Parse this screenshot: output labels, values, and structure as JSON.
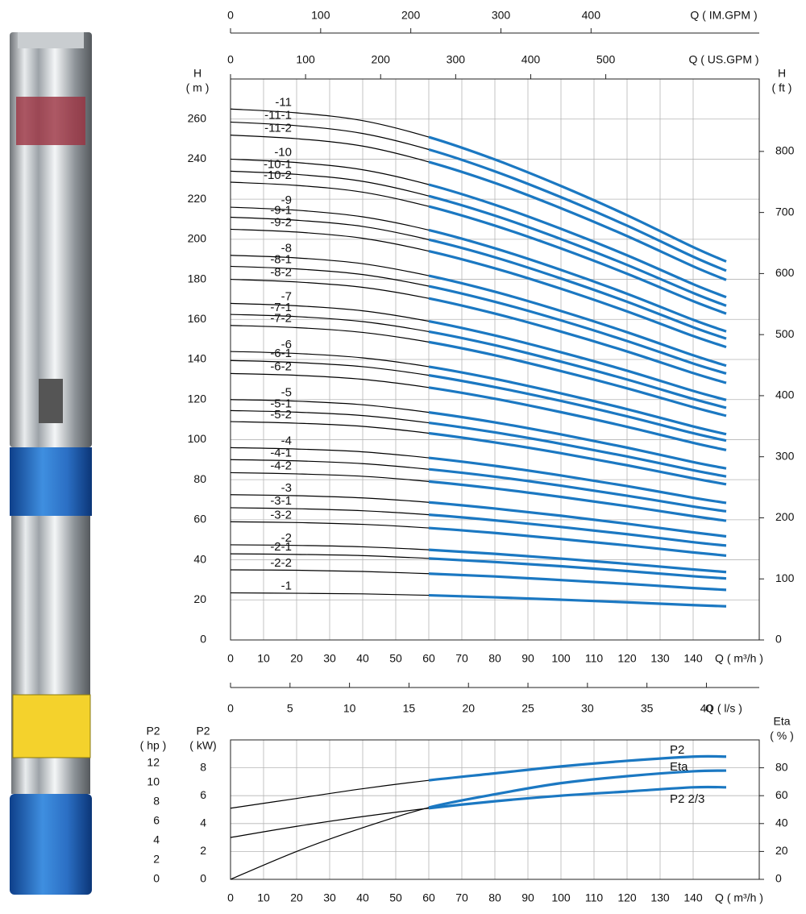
{
  "chart_data": [
    {
      "type": "line",
      "x": [
        0,
        20,
        40,
        60,
        80,
        100,
        120,
        140,
        150
      ],
      "xlim": [
        0,
        160
      ],
      "xticks": [
        0,
        10,
        20,
        30,
        40,
        50,
        60,
        70,
        80,
        90,
        100,
        110,
        120,
        130,
        140
      ],
      "x_label": "Q ( m³/h )",
      "ylim": [
        0,
        280
      ],
      "yticks": [
        0,
        20,
        40,
        60,
        80,
        100,
        120,
        140,
        160,
        180,
        200,
        220,
        240,
        260
      ],
      "y_label": [
        "H",
        "( m )"
      ],
      "y2lim": [
        0,
        918.6
      ],
      "y2ticks": [
        0,
        100,
        200,
        300,
        400,
        500,
        600,
        700,
        800
      ],
      "y2_label": [
        "H",
        "( ft )"
      ],
      "top_axes": [
        {
          "label": "Q ( IM.GPM )",
          "lim": [
            0,
            586.6
          ],
          "ticks": [
            0,
            100,
            200,
            300,
            400
          ]
        },
        {
          "label": "Q ( US.GPM )",
          "lim": [
            0,
            704.5
          ],
          "ticks": [
            0,
            100,
            200,
            300,
            400,
            500
          ]
        }
      ],
      "bottom_axes": [
        {
          "label": "Q ( l/s )",
          "lim": [
            0,
            44.44
          ],
          "ticks": [
            0,
            5,
            10,
            15,
            20,
            25,
            30,
            35,
            40
          ]
        }
      ],
      "grid": true,
      "operating_range": [
        60,
        150
      ],
      "outside_range_color": "#000000",
      "series": [
        {
          "name": "-11",
          "color": "#1b78c2",
          "values": [
            265,
            263.1,
            259.2,
            251.0,
            239.8,
            226.6,
            212.0,
            196.1,
            188.9
          ]
        },
        {
          "name": "-11-1",
          "color": "#1b78c2",
          "values": [
            258.5,
            256.7,
            252.8,
            244.8,
            233.9,
            221.0,
            206.8,
            191.3,
            184.3
          ]
        },
        {
          "name": "-11-2",
          "color": "#1b78c2",
          "values": [
            252,
            250.2,
            246.5,
            238.6,
            228.1,
            215.5,
            201.6,
            186.5,
            179.7
          ]
        },
        {
          "name": "-10",
          "color": "#1b78c2",
          "values": [
            240,
            238.3,
            234.7,
            227.3,
            217.2,
            205.2,
            192,
            177.6,
            171.1
          ]
        },
        {
          "name": "-10-1",
          "color": "#1b78c2",
          "values": [
            234,
            232.4,
            228.9,
            221.6,
            211.8,
            200.1,
            187.2,
            173.2,
            166.8
          ]
        },
        {
          "name": "-10-2",
          "color": "#1b78c2",
          "values": [
            228.5,
            226.9,
            223.5,
            216.4,
            206.8,
            195.4,
            182.8,
            169.1,
            162.9
          ]
        },
        {
          "name": "-9",
          "color": "#1b78c2",
          "values": [
            216,
            214.5,
            211.2,
            204.6,
            195.5,
            184.7,
            172.8,
            159.8,
            154.0
          ]
        },
        {
          "name": "-9-1",
          "color": "#1b78c2",
          "values": [
            211,
            209.5,
            206.4,
            199.8,
            191.0,
            180.4,
            168.8,
            156.1,
            150.4
          ]
        },
        {
          "name": "-9-2",
          "color": "#1b78c2",
          "values": [
            205,
            203.6,
            200.5,
            194.1,
            185.5,
            175.3,
            164,
            151.7,
            146.2
          ]
        },
        {
          "name": "-8",
          "color": "#1b78c2",
          "values": [
            192,
            190.7,
            187.8,
            181.8,
            173.8,
            164.2,
            153.6,
            142.1,
            136.9
          ]
        },
        {
          "name": "-8-1",
          "color": "#1b78c2",
          "values": [
            186.5,
            185.2,
            182.4,
            176.6,
            168.8,
            159.5,
            149.2,
            138.0,
            133.0
          ]
        },
        {
          "name": "-8-2",
          "color": "#1b78c2",
          "values": [
            180,
            178.7,
            176.0,
            170.5,
            162.9,
            153.9,
            144,
            133.2,
            128.3
          ]
        },
        {
          "name": "-7",
          "color": "#1b78c2",
          "values": [
            168,
            166.8,
            164.3,
            159.1,
            152.0,
            143.6,
            134.4,
            124.3,
            119.8
          ]
        },
        {
          "name": "-7-1",
          "color": "#1b78c2",
          "values": [
            162.5,
            161.4,
            158.9,
            153.9,
            147.1,
            138.9,
            130,
            120.3,
            115.9
          ]
        },
        {
          "name": "-7-2",
          "color": "#1b78c2",
          "values": [
            157,
            155.9,
            153.5,
            148.7,
            142.1,
            134.2,
            125.6,
            116.2,
            111.9
          ]
        },
        {
          "name": "-6",
          "color": "#1b78c2",
          "values": [
            144,
            143.0,
            140.8,
            136.4,
            130.3,
            123.1,
            115.2,
            106.6,
            102.7
          ]
        },
        {
          "name": "-6-1",
          "color": "#1b78c2",
          "values": [
            139.5,
            138.5,
            136.4,
            132.1,
            126.2,
            119.3,
            111.6,
            103.2,
            99.5
          ]
        },
        {
          "name": "-6-2",
          "color": "#1b78c2",
          "values": [
            133,
            132.1,
            130.1,
            126.0,
            120.4,
            113.7,
            106.4,
            98.4,
            94.8
          ]
        },
        {
          "name": "-5",
          "color": "#1b78c2",
          "values": [
            120,
            119.2,
            117.4,
            113.6,
            108.6,
            102.6,
            96,
            88.8,
            85.6
          ]
        },
        {
          "name": "-5-1",
          "color": "#1b78c2",
          "values": [
            114.5,
            113.7,
            112.0,
            108.4,
            103.6,
            97.9,
            91.6,
            84.7,
            81.6
          ]
        },
        {
          "name": "-5-2",
          "color": "#1b78c2",
          "values": [
            109,
            108.2,
            106.6,
            103.2,
            98.6,
            93.2,
            87.2,
            80.7,
            77.7
          ]
        },
        {
          "name": "-4",
          "color": "#1b78c2",
          "values": [
            96,
            95.3,
            93.9,
            90.9,
            86.9,
            82.1,
            76.8,
            71.0,
            68.4
          ]
        },
        {
          "name": "-4-1",
          "color": "#1b78c2",
          "values": [
            90,
            89.4,
            88.0,
            85.2,
            81.5,
            77.0,
            72,
            66.6,
            64.2
          ]
        },
        {
          "name": "-4-2",
          "color": "#1b78c2",
          "values": [
            83.5,
            82.9,
            81.7,
            79.1,
            75.6,
            71.4,
            66.8,
            61.8,
            59.5
          ]
        },
        {
          "name": "-3",
          "color": "#1b78c2",
          "values": [
            72.5,
            72.0,
            70.9,
            68.7,
            65.6,
            62.0,
            58,
            53.7,
            51.7
          ]
        },
        {
          "name": "-3-1",
          "color": "#1b78c2",
          "values": [
            66,
            65.5,
            64.5,
            62.5,
            59.7,
            56.4,
            52.8,
            48.8,
            47.1
          ]
        },
        {
          "name": "-3-2",
          "color": "#1b78c2",
          "values": [
            59,
            58.6,
            57.7,
            55.9,
            53.4,
            50.4,
            47.2,
            43.7,
            42.1
          ]
        },
        {
          "name": "-2",
          "color": "#1b78c2",
          "values": [
            47.5,
            47.2,
            46.5,
            45.0,
            43.0,
            40.6,
            38,
            35.2,
            33.9
          ]
        },
        {
          "name": "-2-1",
          "color": "#1b78c2",
          "values": [
            43,
            42.7,
            42.1,
            40.7,
            38.9,
            36.8,
            34.4,
            31.8,
            30.7
          ]
        },
        {
          "name": "-2-2",
          "color": "#1b78c2",
          "values": [
            35,
            34.8,
            34.2,
            33.1,
            31.7,
            29.9,
            28,
            25.9,
            25.0
          ]
        },
        {
          "name": "-1",
          "color": "#1b78c2",
          "values": [
            23.5,
            23.3,
            23.0,
            22.3,
            21.3,
            20.1,
            18.8,
            17.4,
            16.8
          ]
        }
      ]
    },
    {
      "type": "line",
      "x": [
        0,
        20,
        40,
        60,
        80,
        100,
        120,
        140,
        150
      ],
      "xlim": [
        0,
        160
      ],
      "xticks": [
        0,
        10,
        20,
        30,
        40,
        50,
        60,
        70,
        80,
        90,
        100,
        110,
        120,
        130,
        140
      ],
      "x_label": "Q ( m³/h )",
      "ylim": [
        0,
        10
      ],
      "yticks": [
        0,
        2,
        4,
        6,
        8
      ],
      "y_label": [
        "P2",
        "( kW)"
      ],
      "extra_y_axes": [
        {
          "label": [
            "P2",
            "( hp )"
          ],
          "lim": [
            0,
            14.4
          ],
          "ticks": [
            0,
            2,
            4,
            6,
            8,
            10,
            12
          ]
        }
      ],
      "y2lim": [
        0,
        100
      ],
      "y2ticks": [
        0,
        20,
        40,
        60,
        80
      ],
      "y2_label": [
        "Eta",
        "( % )"
      ],
      "grid": true,
      "operating_range": [
        60,
        150
      ],
      "outside_range_color": "#000000",
      "series": [
        {
          "name": "P2",
          "color": "#1b78c2",
          "axis": "y",
          "values": [
            5.1,
            5.8,
            6.5,
            7.1,
            7.6,
            8.1,
            8.5,
            8.8,
            8.8
          ]
        },
        {
          "name": "Eta",
          "color": "#1b78c2",
          "axis": "y2",
          "values": [
            0,
            20,
            37,
            51.5,
            61,
            69,
            74,
            77.5,
            78
          ]
        },
        {
          "name": "P2 2/3",
          "color": "#1b78c2",
          "axis": "y",
          "values": [
            3.0,
            3.8,
            4.5,
            5.1,
            5.6,
            6.0,
            6.3,
            6.6,
            6.6
          ]
        }
      ]
    }
  ]
}
